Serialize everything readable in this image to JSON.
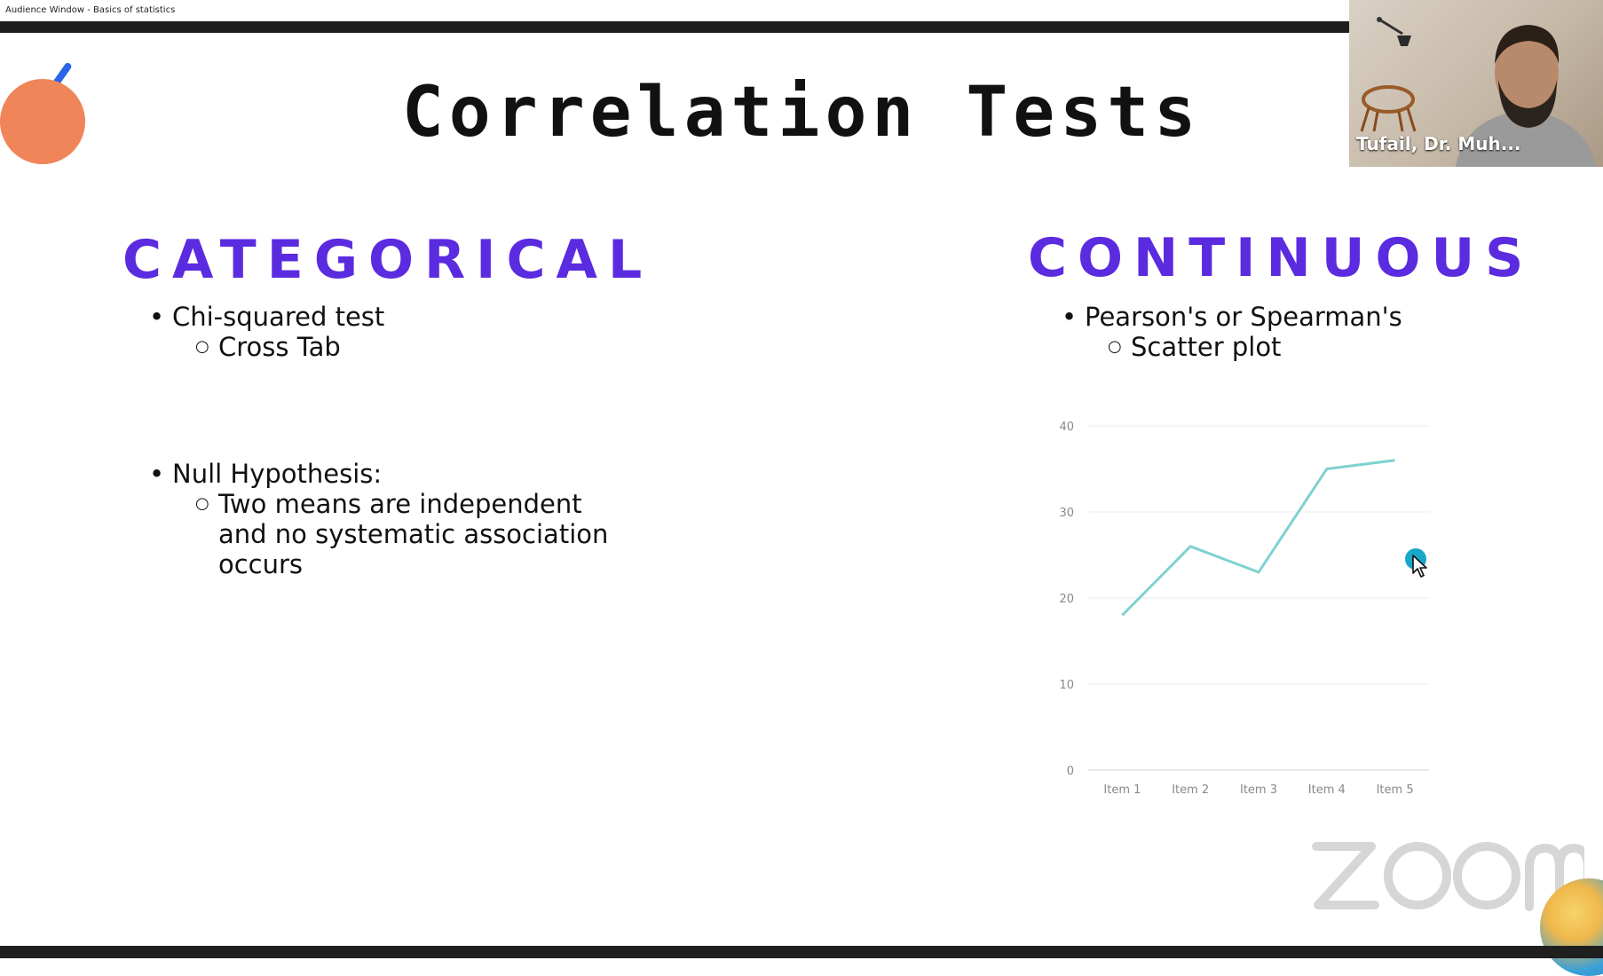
{
  "window": {
    "title": "Audience Window - Basics of statistics"
  },
  "slide": {
    "title": "Correlation Tests",
    "categorical": {
      "heading": "CATEGORICAL",
      "item1": "Chi-squared test",
      "item1_sub": "Cross Tab",
      "item2": "Null Hypothesis:",
      "item2_sub": "Two means are independent and no systematic association occurs"
    },
    "continuous": {
      "heading": "CONTINUOUS",
      "item1": "Pearson's or Spearman's",
      "item1_sub": "Scatter plot"
    }
  },
  "chart_data": {
    "type": "line",
    "categories": [
      "Item 1",
      "Item 2",
      "Item 3",
      "Item 4",
      "Item 5"
    ],
    "values": [
      18,
      26,
      23,
      35,
      36
    ],
    "yticks": [
      "0",
      "10",
      "20",
      "30",
      "40"
    ],
    "ylim": [
      0,
      40
    ],
    "grid": true,
    "line_color": "#7fd2d0"
  },
  "video": {
    "participant_name": "Tufail, Dr. Muh..."
  },
  "branding": {
    "logo": "zoom-logo"
  },
  "colors": {
    "heading": "#5b2be0",
    "accent_dot": "#f0855a",
    "cursor_highlight": "#1aa6c9"
  }
}
